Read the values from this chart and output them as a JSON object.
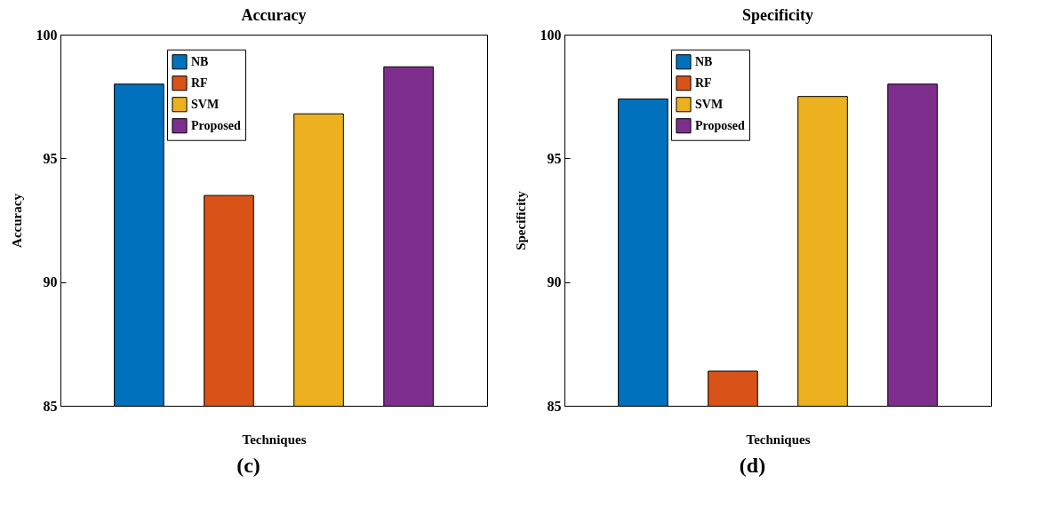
{
  "chart_data": [
    {
      "type": "bar",
      "title": "Accuracy",
      "xlabel": "Techniques",
      "ylabel": "Accuracy",
      "categories": [
        null
      ],
      "series": [
        {
          "name": "NB",
          "color": "#0072bd",
          "values": [
            98.0
          ]
        },
        {
          "name": "RF",
          "color": "#d95319",
          "values": [
            93.5
          ]
        },
        {
          "name": "SVM",
          "color": "#edb120",
          "values": [
            96.8
          ]
        },
        {
          "name": "Proposed",
          "color": "#7e2f8e",
          "values": [
            98.7
          ]
        }
      ],
      "ylim": [
        85,
        100
      ],
      "yticks": [
        85,
        90,
        95,
        100
      ],
      "grid": false,
      "legend": "top",
      "tick_labels": "y",
      "annotations": [
        "(c)"
      ]
    },
    {
      "type": "bar",
      "title": "Specificity",
      "xlabel": "Techniques",
      "ylabel": "Specificity",
      "categories": [
        null
      ],
      "series": [
        {
          "name": "NB",
          "color": "#0072bd",
          "values": [
            97.4
          ]
        },
        {
          "name": "RF",
          "color": "#d95319",
          "values": [
            86.4
          ]
        },
        {
          "name": "SVM",
          "color": "#edb120",
          "values": [
            97.5
          ]
        },
        {
          "name": "Proposed",
          "color": "#7e2f8e",
          "values": [
            98.0
          ]
        }
      ],
      "ylim": [
        85,
        100
      ],
      "yticks": [
        85,
        90,
        95,
        100
      ],
      "grid": false,
      "legend": "top",
      "tick_labels": "y",
      "annotations": [
        "(d)"
      ]
    }
  ]
}
